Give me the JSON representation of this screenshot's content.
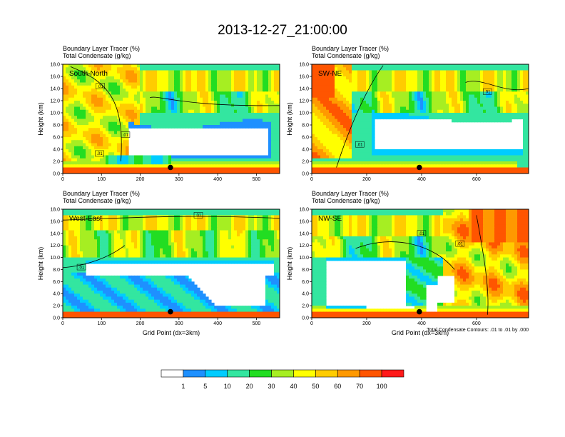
{
  "title": "2013-12-27_21:00:00",
  "chart_data": [
    {
      "type": "heatmap",
      "label": "South-North",
      "caption_line1": "Boundary Layer Tracer   (%)",
      "caption_line2": "Total Condensate   (g/kg)",
      "xlim": [
        0,
        560
      ],
      "ylim": [
        0,
        18
      ],
      "xticks": [
        0,
        100,
        200,
        300,
        400,
        500
      ],
      "yticks": [
        "0.0",
        "2.0",
        "4.0",
        "6.0",
        "8.0",
        "10.0",
        "12.0",
        "14.0",
        "16.0",
        "18.0"
      ],
      "ylabel": "Height (km)",
      "xlabel": "",
      "marker": {
        "x": 278,
        "y": 1.0
      },
      "contour_labels": [
        {
          "text": ".01",
          "x": 97,
          "y": 14.4
        },
        {
          "text": ".01",
          "x": 162,
          "y": 6.4
        },
        {
          "text": ".01",
          "x": 95,
          "y": 3.3
        }
      ]
    },
    {
      "type": "heatmap",
      "label": "SW-NE",
      "caption_line1": "Boundary Layer Tracer   (%)",
      "caption_line2": "Total Condensate   (g/kg)",
      "xlim": [
        0,
        790
      ],
      "ylim": [
        0,
        18
      ],
      "xticks": [
        0,
        200,
        400,
        600
      ],
      "yticks": [
        "0.0",
        "2.0",
        "4.0",
        "6.0",
        "8.0",
        "10.0",
        "12.0",
        "14.0",
        "16.0",
        "18.0"
      ],
      "ylabel": "Height (km)",
      "xlabel": "",
      "marker": {
        "x": 392,
        "y": 1.0
      },
      "contour_labels": [
        {
          "text": ".01",
          "x": 640,
          "y": 13.5
        },
        {
          "text": ".01",
          "x": 175,
          "y": 4.8
        }
      ]
    },
    {
      "type": "heatmap",
      "label": "West-East",
      "caption_line1": "Boundary Layer Tracer   (%)",
      "caption_line2": "Total Condensate   (g/kg)",
      "xlim": [
        0,
        560
      ],
      "ylim": [
        0,
        18
      ],
      "xticks": [
        0,
        100,
        200,
        300,
        400,
        500
      ],
      "yticks": [
        "0.0",
        "2.0",
        "4.0",
        "6.0",
        "8.0",
        "10.0",
        "12.0",
        "14.0",
        "16.0",
        "18.0"
      ],
      "ylabel": "Height (km)",
      "xlabel": "Grid Point (dx=3km)",
      "marker": {
        "x": 278,
        "y": 1.0
      },
      "contour_labels": [
        {
          "text": ".01",
          "x": 350,
          "y": 17.0
        },
        {
          "text": ".01",
          "x": 48,
          "y": 8.4
        }
      ]
    },
    {
      "type": "heatmap",
      "label": "NW-SE",
      "caption_line1": "Boundary Layer Tracer   (%)",
      "caption_line2": "Total Condensate   (g/kg)",
      "xlim": [
        0,
        790
      ],
      "ylim": [
        0,
        18
      ],
      "xticks": [
        0,
        200,
        400,
        600
      ],
      "yticks": [
        "0.0",
        "2.0",
        "4.0",
        "6.0",
        "8.0",
        "10.0",
        "12.0",
        "14.0",
        "16.0",
        "18.0"
      ],
      "ylabel": "Height (km)",
      "xlabel": "Grid Point (dx=3km)",
      "footnote": "Total Condensate Contours: .01 to .01 by .000",
      "marker": {
        "x": 392,
        "y": 1.0
      },
      "contour_labels": [
        {
          "text": ".01",
          "x": 400,
          "y": 14.0
        },
        {
          "text": ".01",
          "x": 540,
          "y": 12.3
        }
      ]
    }
  ],
  "colorbar": {
    "labels": [
      "1",
      "5",
      "10",
      "20",
      "30",
      "40",
      "50",
      "60",
      "70",
      "100"
    ],
    "colors": [
      "#ffffff",
      "#1e90ff",
      "#00ccff",
      "#33e6a0",
      "#22dd22",
      "#a6ee22",
      "#ffff00",
      "#ffcc00",
      "#ff9900",
      "#ff5500",
      "#ff1a1a"
    ]
  }
}
